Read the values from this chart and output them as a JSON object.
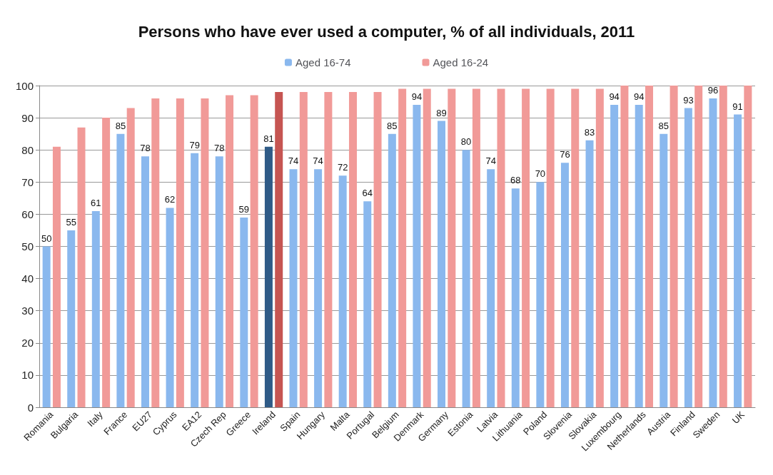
{
  "chart_data": {
    "type": "bar",
    "title": "Persons who have ever used a computer, % of all individuals, 2011",
    "categories": [
      "Romania",
      "Bulgaria",
      "Italy",
      "France",
      "EU27",
      "Cyprus",
      "EA12",
      "Czech Rep",
      "Greece",
      "Ireland",
      "Spain",
      "Hungary",
      "Malta",
      "Portugal",
      "Belgium",
      "Denmark",
      "Germany",
      "Estonia",
      "Latvia",
      "Lithuania",
      "Poland",
      "Slovenia",
      "Slovakia",
      "Luxembourg",
      "Netherlands",
      "Austria",
      "Finland",
      "Sweden",
      "UK"
    ],
    "series": [
      {
        "name": "Aged 16-74",
        "color": "#8ab8ee",
        "colors": [
          "#8ab8ee",
          "#8ab8ee",
          "#8ab8ee",
          "#8ab8ee",
          "#8ab8ee",
          "#8ab8ee",
          "#8ab8ee",
          "#8ab8ee",
          "#8ab8ee",
          "#2f5b87",
          "#8ab8ee",
          "#8ab8ee",
          "#8ab8ee",
          "#8ab8ee",
          "#8ab8ee",
          "#8ab8ee",
          "#8ab8ee",
          "#8ab8ee",
          "#8ab8ee",
          "#8ab8ee",
          "#8ab8ee",
          "#8ab8ee",
          "#8ab8ee",
          "#8ab8ee",
          "#8ab8ee",
          "#8ab8ee",
          "#8ab8ee",
          "#8ab8ee",
          "#8ab8ee"
        ],
        "values": [
          50,
          55,
          61,
          85,
          78,
          62,
          79,
          78,
          59,
          81,
          74,
          74,
          72,
          64,
          85,
          94,
          89,
          80,
          74,
          68,
          70,
          76,
          83,
          94,
          94,
          85,
          93,
          96,
          91
        ],
        "value_labels": [
          "50",
          "55",
          "61",
          "85",
          "78",
          "62",
          "79",
          "78",
          "59",
          "81",
          "74",
          "74",
          "72",
          "64",
          "85",
          "94",
          "89",
          "80",
          "74",
          "68",
          "70",
          "76",
          "83",
          "94",
          "94",
          "85",
          "93",
          "96",
          "91"
        ]
      },
      {
        "name": "Aged 16-24",
        "color": "#f19a98",
        "colors": [
          "#f19a98",
          "#f19a98",
          "#f19a98",
          "#f19a98",
          "#f19a98",
          "#f19a98",
          "#f19a98",
          "#f19a98",
          "#f19a98",
          "#c65552",
          "#f19a98",
          "#f19a98",
          "#f19a98",
          "#f19a98",
          "#f19a98",
          "#f19a98",
          "#f19a98",
          "#f19a98",
          "#f19a98",
          "#f19a98",
          "#f19a98",
          "#f19a98",
          "#f19a98",
          "#f19a98",
          "#f19a98",
          "#f19a98",
          "#f19a98",
          "#f19a98",
          "#f19a98"
        ],
        "values": [
          81,
          87,
          90,
          93,
          96,
          96,
          96,
          97,
          97,
          98,
          98,
          98,
          98,
          98,
          99,
          99,
          99,
          99,
          99,
          99,
          99,
          99,
          99,
          100,
          100,
          100,
          100,
          100,
          100
        ]
      }
    ],
    "ylim": [
      0,
      100
    ],
    "yticks": [
      0,
      10,
      20,
      30,
      40,
      50,
      60,
      70,
      80,
      90,
      100
    ],
    "grid": "y",
    "legend": "top"
  }
}
